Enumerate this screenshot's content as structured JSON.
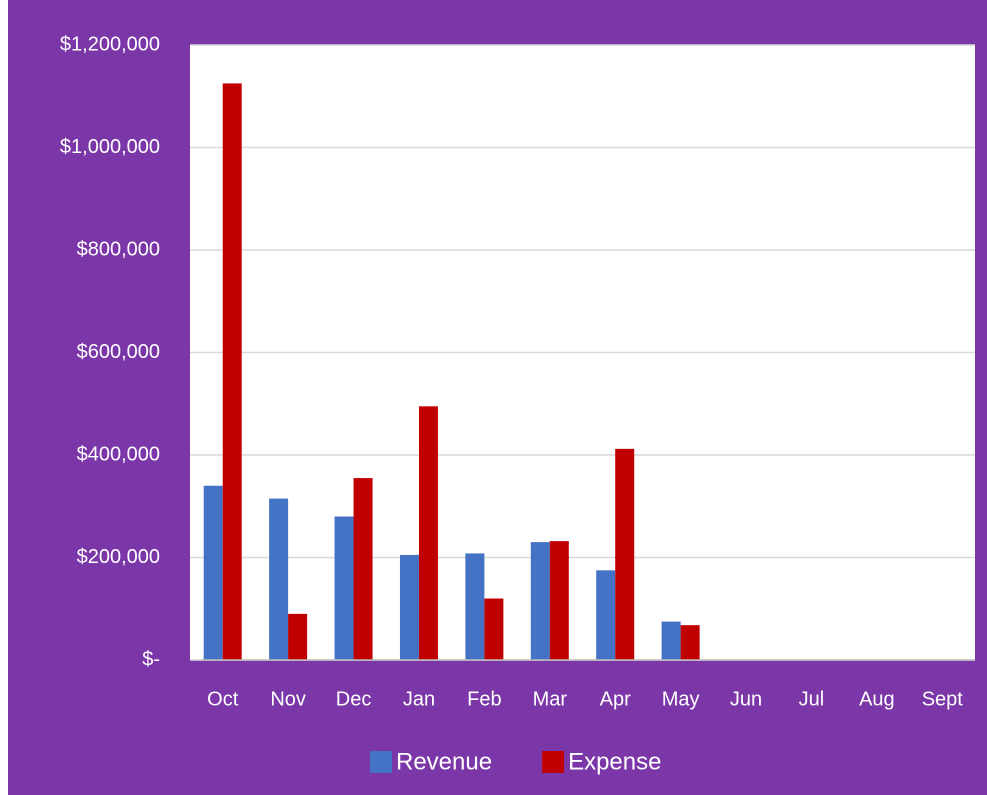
{
  "chart_data": {
    "type": "bar",
    "categories": [
      "Oct",
      "Nov",
      "Dec",
      "Jan",
      "Feb",
      "Mar",
      "Apr",
      "May",
      "Jun",
      "Jul",
      "Aug",
      "Sept"
    ],
    "series": [
      {
        "name": "Revenue",
        "color": "#4472c4",
        "values": [
          340000,
          315000,
          280000,
          205000,
          208000,
          230000,
          175000,
          75000,
          null,
          null,
          null,
          null
        ]
      },
      {
        "name": "Expense",
        "color": "#c00000",
        "values": [
          1125000,
          90000,
          355000,
          495000,
          120000,
          232000,
          412000,
          68000,
          null,
          null,
          null,
          null
        ]
      }
    ],
    "ylim": [
      0,
      1200000
    ],
    "yticks": [
      {
        "value": 0,
        "label": "$-"
      },
      {
        "value": 200000,
        "label": "$200,000"
      },
      {
        "value": 400000,
        "label": "$400,000"
      },
      {
        "value": 600000,
        "label": "$600,000"
      },
      {
        "value": 800000,
        "label": "$800,000"
      },
      {
        "value": 1000000,
        "label": "$1,000,000"
      },
      {
        "value": 1200000,
        "label": "$1,200,000"
      }
    ],
    "grid": true,
    "legend": "bottom"
  }
}
